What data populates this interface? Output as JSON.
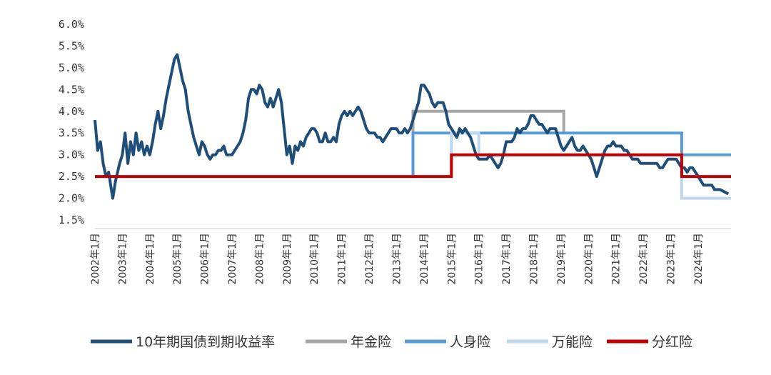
{
  "chart_data": {
    "type": "line",
    "title": "",
    "xlabel": "",
    "ylabel": "",
    "ylim": [
      1.5,
      6.0
    ],
    "yticks": [
      "1.5%",
      "2.0%",
      "2.5%",
      "3.0%",
      "3.5%",
      "4.0%",
      "4.5%",
      "5.0%",
      "5.5%",
      "6.0%"
    ],
    "xtick_labels": [
      "2002年1月",
      "2003年1月",
      "2004年1月",
      "2005年1月",
      "2006年1月",
      "2007年1月",
      "2008年1月",
      "2009年1月",
      "2010年1月",
      "2011年1月",
      "2012年1月",
      "2013年1月",
      "2014年1月",
      "2015年1月",
      "2016年1月",
      "2017年1月",
      "2018年1月",
      "2019年1月",
      "2020年1月",
      "2021年1月",
      "2022年1月",
      "2023年1月",
      "2024年1月"
    ],
    "x_start": 2002.0,
    "x_end": 2025.2,
    "grid": false,
    "legend_position": "bottom",
    "series": [
      {
        "name": "10年期国债到期收益率",
        "color": "#1f4e79",
        "points": [
          [
            2002.0,
            3.8
          ],
          [
            2002.1,
            3.1
          ],
          [
            2002.2,
            3.3
          ],
          [
            2002.3,
            2.8
          ],
          [
            2002.4,
            2.5
          ],
          [
            2002.5,
            2.6
          ],
          [
            2002.6,
            2.2
          ],
          [
            2002.65,
            2.0
          ],
          [
            2002.75,
            2.4
          ],
          [
            2002.9,
            2.8
          ],
          [
            2003.0,
            3.0
          ],
          [
            2003.1,
            3.5
          ],
          [
            2003.2,
            2.8
          ],
          [
            2003.3,
            3.3
          ],
          [
            2003.4,
            3.0
          ],
          [
            2003.5,
            3.5
          ],
          [
            2003.6,
            3.1
          ],
          [
            2003.7,
            3.3
          ],
          [
            2003.8,
            3.0
          ],
          [
            2003.9,
            3.2
          ],
          [
            2004.0,
            3.0
          ],
          [
            2004.1,
            3.3
          ],
          [
            2004.2,
            3.7
          ],
          [
            2004.3,
            4.0
          ],
          [
            2004.4,
            3.6
          ],
          [
            2004.5,
            3.9
          ],
          [
            2004.6,
            4.3
          ],
          [
            2004.7,
            4.6
          ],
          [
            2004.8,
            4.9
          ],
          [
            2004.9,
            5.2
          ],
          [
            2005.0,
            5.3
          ],
          [
            2005.1,
            5.0
          ],
          [
            2005.2,
            4.7
          ],
          [
            2005.3,
            4.5
          ],
          [
            2005.4,
            4.0
          ],
          [
            2005.5,
            3.7
          ],
          [
            2005.6,
            3.4
          ],
          [
            2005.7,
            3.2
          ],
          [
            2005.8,
            3.0
          ],
          [
            2005.9,
            3.3
          ],
          [
            2006.0,
            3.2
          ],
          [
            2006.1,
            3.0
          ],
          [
            2006.2,
            2.9
          ],
          [
            2006.3,
            3.0
          ],
          [
            2006.4,
            3.0
          ],
          [
            2006.5,
            3.1
          ],
          [
            2006.6,
            3.1
          ],
          [
            2006.7,
            3.2
          ],
          [
            2006.8,
            3.0
          ],
          [
            2006.9,
            3.0
          ],
          [
            2007.0,
            3.0
          ],
          [
            2007.1,
            3.1
          ],
          [
            2007.2,
            3.2
          ],
          [
            2007.3,
            3.3
          ],
          [
            2007.4,
            3.5
          ],
          [
            2007.5,
            3.8
          ],
          [
            2007.6,
            4.3
          ],
          [
            2007.7,
            4.5
          ],
          [
            2007.8,
            4.5
          ],
          [
            2007.9,
            4.4
          ],
          [
            2008.0,
            4.6
          ],
          [
            2008.1,
            4.5
          ],
          [
            2008.2,
            4.2
          ],
          [
            2008.3,
            4.1
          ],
          [
            2008.4,
            4.3
          ],
          [
            2008.5,
            4.1
          ],
          [
            2008.6,
            4.3
          ],
          [
            2008.7,
            4.5
          ],
          [
            2008.8,
            4.2
          ],
          [
            2008.9,
            3.6
          ],
          [
            2009.0,
            3.0
          ],
          [
            2009.1,
            3.2
          ],
          [
            2009.2,
            2.8
          ],
          [
            2009.3,
            3.2
          ],
          [
            2009.4,
            3.1
          ],
          [
            2009.5,
            3.3
          ],
          [
            2009.6,
            3.2
          ],
          [
            2009.7,
            3.4
          ],
          [
            2009.8,
            3.5
          ],
          [
            2009.9,
            3.6
          ],
          [
            2010.0,
            3.6
          ],
          [
            2010.1,
            3.5
          ],
          [
            2010.2,
            3.3
          ],
          [
            2010.3,
            3.3
          ],
          [
            2010.4,
            3.5
          ],
          [
            2010.5,
            3.3
          ],
          [
            2010.6,
            3.3
          ],
          [
            2010.7,
            3.4
          ],
          [
            2010.8,
            3.3
          ],
          [
            2010.9,
            3.7
          ],
          [
            2011.0,
            3.9
          ],
          [
            2011.1,
            4.0
          ],
          [
            2011.2,
            3.9
          ],
          [
            2011.3,
            4.0
          ],
          [
            2011.4,
            3.9
          ],
          [
            2011.5,
            4.0
          ],
          [
            2011.6,
            4.1
          ],
          [
            2011.7,
            4.0
          ],
          [
            2011.8,
            3.8
          ],
          [
            2011.9,
            3.6
          ],
          [
            2012.0,
            3.5
          ],
          [
            2012.1,
            3.5
          ],
          [
            2012.2,
            3.5
          ],
          [
            2012.3,
            3.4
          ],
          [
            2012.4,
            3.4
          ],
          [
            2012.5,
            3.3
          ],
          [
            2012.6,
            3.4
          ],
          [
            2012.7,
            3.5
          ],
          [
            2012.8,
            3.6
          ],
          [
            2012.9,
            3.6
          ],
          [
            2013.0,
            3.6
          ],
          [
            2013.1,
            3.5
          ],
          [
            2013.2,
            3.5
          ],
          [
            2013.3,
            3.6
          ],
          [
            2013.4,
            3.5
          ],
          [
            2013.5,
            3.6
          ],
          [
            2013.6,
            3.8
          ],
          [
            2013.7,
            4.0
          ],
          [
            2013.8,
            4.2
          ],
          [
            2013.9,
            4.6
          ],
          [
            2014.0,
            4.6
          ],
          [
            2014.1,
            4.5
          ],
          [
            2014.2,
            4.4
          ],
          [
            2014.3,
            4.2
          ],
          [
            2014.4,
            4.1
          ],
          [
            2014.5,
            4.2
          ],
          [
            2014.6,
            4.2
          ],
          [
            2014.7,
            4.2
          ],
          [
            2014.8,
            4.0
          ],
          [
            2014.9,
            3.7
          ],
          [
            2015.0,
            3.6
          ],
          [
            2015.1,
            3.5
          ],
          [
            2015.2,
            3.4
          ],
          [
            2015.3,
            3.6
          ],
          [
            2015.4,
            3.5
          ],
          [
            2015.5,
            3.6
          ],
          [
            2015.6,
            3.5
          ],
          [
            2015.7,
            3.4
          ],
          [
            2015.8,
            3.2
          ],
          [
            2015.9,
            3.0
          ],
          [
            2016.0,
            2.9
          ],
          [
            2016.1,
            2.9
          ],
          [
            2016.2,
            2.9
          ],
          [
            2016.3,
            2.9
          ],
          [
            2016.4,
            3.0
          ],
          [
            2016.5,
            2.9
          ],
          [
            2016.6,
            2.8
          ],
          [
            2016.7,
            2.7
          ],
          [
            2016.8,
            2.8
          ],
          [
            2016.9,
            3.0
          ],
          [
            2017.0,
            3.3
          ],
          [
            2017.1,
            3.3
          ],
          [
            2017.2,
            3.3
          ],
          [
            2017.3,
            3.4
          ],
          [
            2017.4,
            3.6
          ],
          [
            2017.5,
            3.5
          ],
          [
            2017.6,
            3.6
          ],
          [
            2017.7,
            3.6
          ],
          [
            2017.8,
            3.7
          ],
          [
            2017.9,
            3.9
          ],
          [
            2018.0,
            3.9
          ],
          [
            2018.1,
            3.8
          ],
          [
            2018.2,
            3.7
          ],
          [
            2018.3,
            3.7
          ],
          [
            2018.4,
            3.6
          ],
          [
            2018.5,
            3.5
          ],
          [
            2018.6,
            3.6
          ],
          [
            2018.7,
            3.6
          ],
          [
            2018.8,
            3.6
          ],
          [
            2018.9,
            3.4
          ],
          [
            2019.0,
            3.2
          ],
          [
            2019.1,
            3.1
          ],
          [
            2019.2,
            3.2
          ],
          [
            2019.3,
            3.3
          ],
          [
            2019.4,
            3.4
          ],
          [
            2019.5,
            3.2
          ],
          [
            2019.6,
            3.1
          ],
          [
            2019.7,
            3.1
          ],
          [
            2019.8,
            3.2
          ],
          [
            2019.9,
            3.1
          ],
          [
            2020.0,
            3.0
          ],
          [
            2020.1,
            2.9
          ],
          [
            2020.2,
            2.7
          ],
          [
            2020.3,
            2.5
          ],
          [
            2020.4,
            2.7
          ],
          [
            2020.5,
            2.9
          ],
          [
            2020.6,
            3.1
          ],
          [
            2020.7,
            3.2
          ],
          [
            2020.8,
            3.2
          ],
          [
            2020.9,
            3.3
          ],
          [
            2021.0,
            3.2
          ],
          [
            2021.1,
            3.2
          ],
          [
            2021.2,
            3.2
          ],
          [
            2021.3,
            3.1
          ],
          [
            2021.4,
            3.1
          ],
          [
            2021.5,
            3.0
          ],
          [
            2021.6,
            2.9
          ],
          [
            2021.7,
            2.9
          ],
          [
            2021.8,
            2.9
          ],
          [
            2021.9,
            2.8
          ],
          [
            2022.0,
            2.8
          ],
          [
            2022.1,
            2.8
          ],
          [
            2022.2,
            2.8
          ],
          [
            2022.3,
            2.8
          ],
          [
            2022.4,
            2.8
          ],
          [
            2022.5,
            2.8
          ],
          [
            2022.6,
            2.7
          ],
          [
            2022.7,
            2.7
          ],
          [
            2022.8,
            2.8
          ],
          [
            2022.9,
            2.9
          ],
          [
            2023.0,
            2.9
          ],
          [
            2023.1,
            2.9
          ],
          [
            2023.2,
            2.9
          ],
          [
            2023.3,
            2.8
          ],
          [
            2023.4,
            2.7
          ],
          [
            2023.5,
            2.7
          ],
          [
            2023.6,
            2.6
          ],
          [
            2023.7,
            2.7
          ],
          [
            2023.8,
            2.7
          ],
          [
            2023.9,
            2.6
          ],
          [
            2024.0,
            2.5
          ],
          [
            2024.1,
            2.4
          ],
          [
            2024.2,
            2.3
          ],
          [
            2024.3,
            2.3
          ],
          [
            2024.4,
            2.3
          ],
          [
            2024.5,
            2.3
          ],
          [
            2024.6,
            2.2
          ],
          [
            2024.7,
            2.2
          ],
          [
            2024.8,
            2.2
          ],
          [
            2025.1,
            2.1
          ]
        ]
      },
      {
        "name": "年金险",
        "color": "#a6a6a6",
        "points": [
          [
            2013.6,
            2.5
          ],
          [
            2013.6,
            4.0
          ],
          [
            2019.1,
            4.0
          ],
          [
            2019.1,
            3.5
          ]
        ]
      },
      {
        "name": "人身险",
        "color": "#5b9bd5",
        "points": [
          [
            2013.6,
            2.5
          ],
          [
            2013.6,
            3.5
          ],
          [
            2023.4,
            3.5
          ],
          [
            2023.4,
            3.0
          ],
          [
            2025.2,
            3.0
          ]
        ]
      },
      {
        "name": "万能险",
        "color": "#bdd7ee",
        "points": [
          [
            2015.0,
            3.0
          ],
          [
            2015.0,
            3.5
          ],
          [
            2016.0,
            3.5
          ],
          [
            2016.0,
            3.0
          ],
          [
            2023.4,
            3.0
          ],
          [
            2023.4,
            2.0
          ],
          [
            2025.2,
            2.0
          ]
        ]
      },
      {
        "name": "分红险",
        "color": "#c00000",
        "points": [
          [
            2002.0,
            2.5
          ],
          [
            2015.0,
            2.5
          ],
          [
            2015.0,
            3.0
          ],
          [
            2023.4,
            3.0
          ],
          [
            2023.4,
            2.5
          ],
          [
            2025.2,
            2.5
          ]
        ]
      }
    ]
  }
}
